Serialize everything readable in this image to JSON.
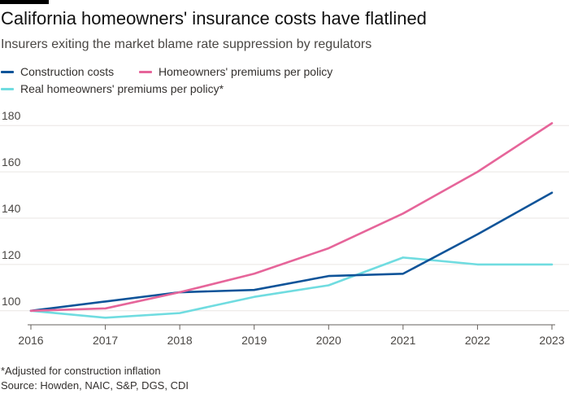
{
  "header": {
    "title": "California homeowners' insurance costs have flatlined",
    "subtitle": "Insurers exiting the market blame rate suppression by regulators"
  },
  "footer": {
    "note": "*Adjusted for construction inflation",
    "source": "Source: Howden, NAIC, S&P, DGS, CDI"
  },
  "chart_data": {
    "type": "line",
    "title": "California homeowners' insurance costs have flatlined",
    "subtitle": "Insurers exiting the market blame rate suppression by regulators",
    "xlabel": "",
    "ylabel": "",
    "x": [
      2016,
      2017,
      2018,
      2019,
      2020,
      2021,
      2022,
      2023
    ],
    "ylim": [
      95,
      185
    ],
    "yticks": [
      100,
      120,
      140,
      160,
      180
    ],
    "legend_position": "top-left",
    "grid": true,
    "series": [
      {
        "name": "Construction costs",
        "color": "#0f5499",
        "values": [
          100,
          104,
          108,
          109,
          115,
          116,
          133,
          151
        ]
      },
      {
        "name": "Homeowners' premiums per policy",
        "color": "#e6659a",
        "values": [
          100,
          101,
          108,
          116,
          127,
          142,
          160,
          181
        ]
      },
      {
        "name": "Real homeowners' premiums per policy*",
        "color": "#70dce0",
        "values": [
          100,
          97,
          99,
          106,
          111,
          123,
          120,
          120
        ]
      }
    ]
  }
}
